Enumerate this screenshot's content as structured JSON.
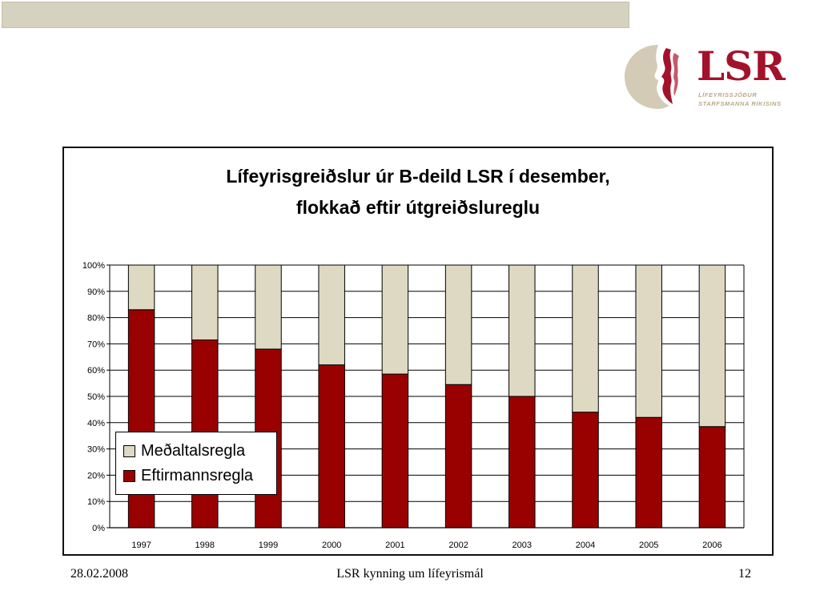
{
  "header": {
    "logo_text": "LSR",
    "logo_sub_line1": "LÍFEYRISSJÓÐUR",
    "logo_sub_line2": "STARFSMANNA RÍKISINS"
  },
  "chart_data": {
    "type": "bar",
    "stacked": true,
    "title_line1": "Lífeyrisgreiðslur úr B-deild LSR í desember,",
    "title_line2": "flokkað eftir útgreiðslureglu",
    "categories": [
      "1997",
      "1998",
      "1999",
      "2000",
      "2001",
      "2002",
      "2003",
      "2004",
      "2005",
      "2006"
    ],
    "series": [
      {
        "name": "Eftirmannsregla",
        "color": "#990000",
        "values": [
          83,
          71.5,
          68,
          62,
          58.5,
          54.5,
          50,
          44,
          42,
          38.5
        ]
      },
      {
        "name": "Meðaltalsregla",
        "color": "#ddd9c3",
        "values": [
          17,
          28.5,
          32,
          38,
          41.5,
          45.5,
          50,
          56,
          58,
          61.5
        ]
      }
    ],
    "yticks": [
      "0%",
      "10%",
      "20%",
      "30%",
      "40%",
      "50%",
      "60%",
      "70%",
      "80%",
      "90%",
      "100%"
    ],
    "ylim": [
      0,
      100
    ],
    "grid": true,
    "legend_position": "lower-left"
  },
  "legend": {
    "item1_label": "Meðaltalsregla",
    "item2_label": "Eftirmannsregla"
  },
  "footer": {
    "date": "28.02.2008",
    "center": "LSR kynning um lífeyrismál",
    "page": "12"
  }
}
